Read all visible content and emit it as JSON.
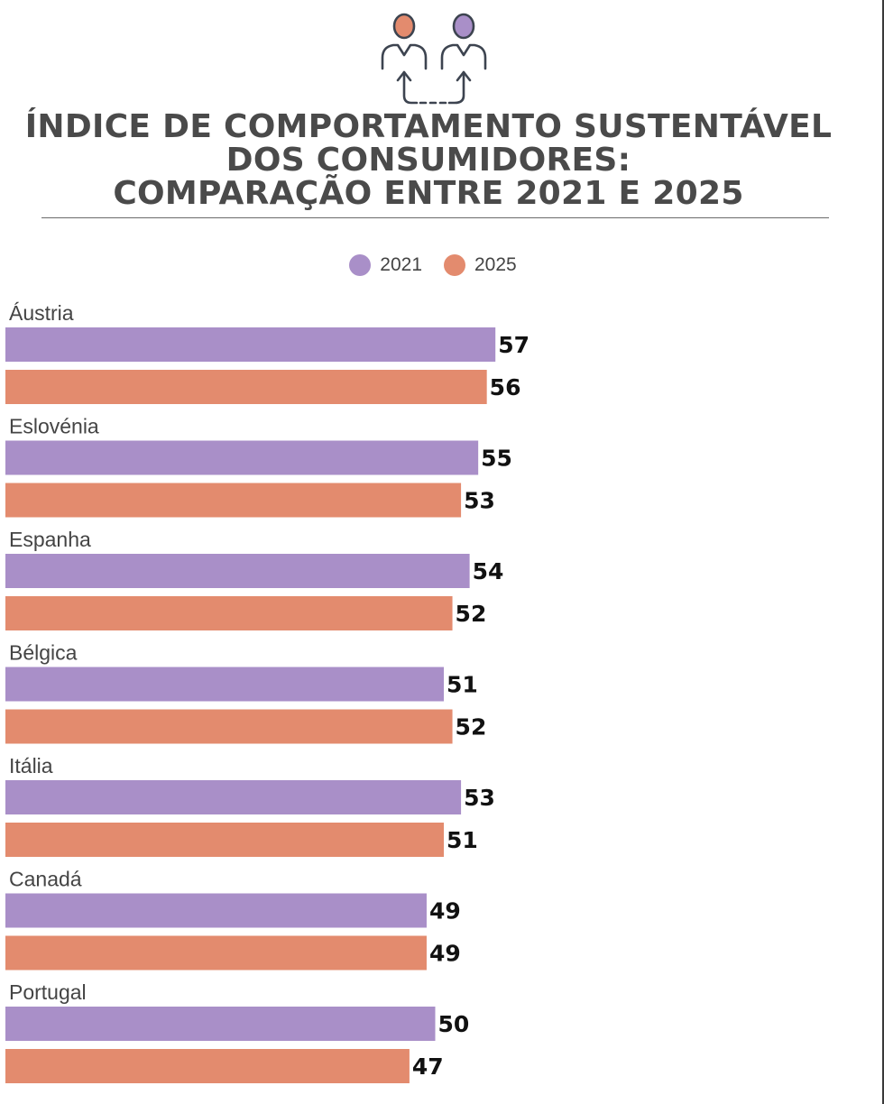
{
  "title_lines": [
    "ÍNDICE DE COMPORTAMENTO SUSTENTÁVEL",
    "DOS CONSUMIDORES:",
    "COMPARAÇÃO ENTRE 2021 E 2025"
  ],
  "colors": {
    "series_2021": "#a98fc8",
    "series_2025": "#e38b6e",
    "title": "#4a4a4a",
    "icon_stroke": "#3d4450"
  },
  "header_icon": "two-people-exchange-icon",
  "chart_data": {
    "type": "bar",
    "orientation": "horizontal",
    "title": "ÍNDICE DE COMPORTAMENTO SUSTENTÁVEL DOS CONSUMIDORES: COMPARAÇÃO ENTRE 2021 E 2025",
    "categories": [
      "Áustria",
      "Eslovénia",
      "Espanha",
      "Bélgica",
      "Itália",
      "Canadá",
      "Portugal"
    ],
    "series": [
      {
        "name": "2021",
        "values": [
          57,
          55,
          54,
          51,
          53,
          49,
          50
        ]
      },
      {
        "name": "2025",
        "values": [
          56,
          53,
          52,
          52,
          51,
          49,
          47
        ]
      }
    ],
    "xlim": [
      0,
      100
    ],
    "legend": "top-center",
    "grid": false,
    "data_labels": true
  }
}
